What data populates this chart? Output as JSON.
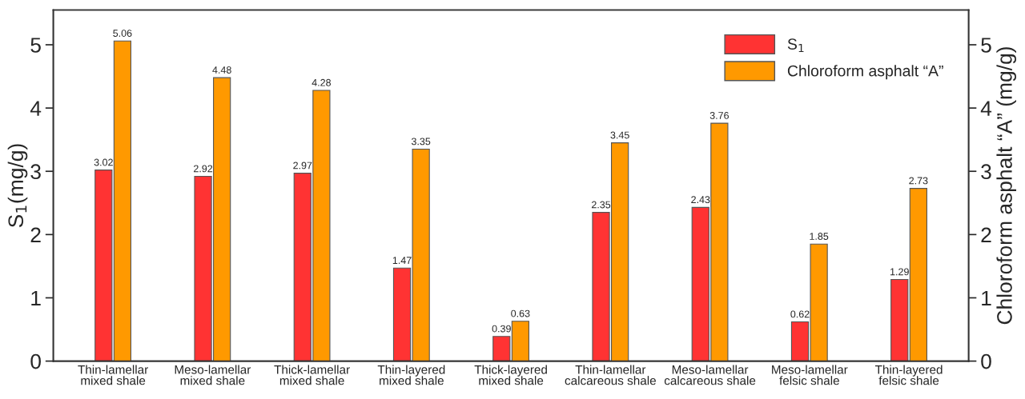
{
  "chart_data": {
    "type": "bar",
    "categories": [
      "Thin-lamellar\nmixed shale",
      "Meso-lamellar\nmixed shale",
      "Thick-lamellar\nmixed shale",
      "Thin-layered\nmixed shale",
      "Thick-layered\nmixed shale",
      "Thin-lamellar\ncalcareous shale",
      "Meso-lamellar\ncalcareous shale",
      "Meso-lamellar\nfelsic shale",
      "Thin-layered\nfelsic shale"
    ],
    "ylabel": "S$_{1}$(mg/g)",
    "y2label": "Chloroform asphalt “A” (mg/g)",
    "series": [
      {
        "name": "S$_{1}$",
        "color": "#ff3333",
        "values": [
          3.02,
          2.92,
          2.97,
          1.47,
          0.39,
          2.35,
          2.43,
          0.62,
          1.29
        ]
      },
      {
        "name": "Chloroform asphalt “A”",
        "color": "#ff9900",
        "axis": "y2",
        "values": [
          5.06,
          4.48,
          4.28,
          3.35,
          0.63,
          3.45,
          3.76,
          1.85,
          2.73
        ]
      }
    ],
    "ylim": [
      0,
      5.55
    ],
    "yticks": [
      0,
      1,
      2,
      3,
      4,
      5
    ],
    "y2lim": [
      0,
      5.55
    ],
    "y2ticks": [
      0,
      1,
      2,
      3,
      4,
      5
    ],
    "data_labels": true,
    "legend": "top right",
    "grid": false
  }
}
